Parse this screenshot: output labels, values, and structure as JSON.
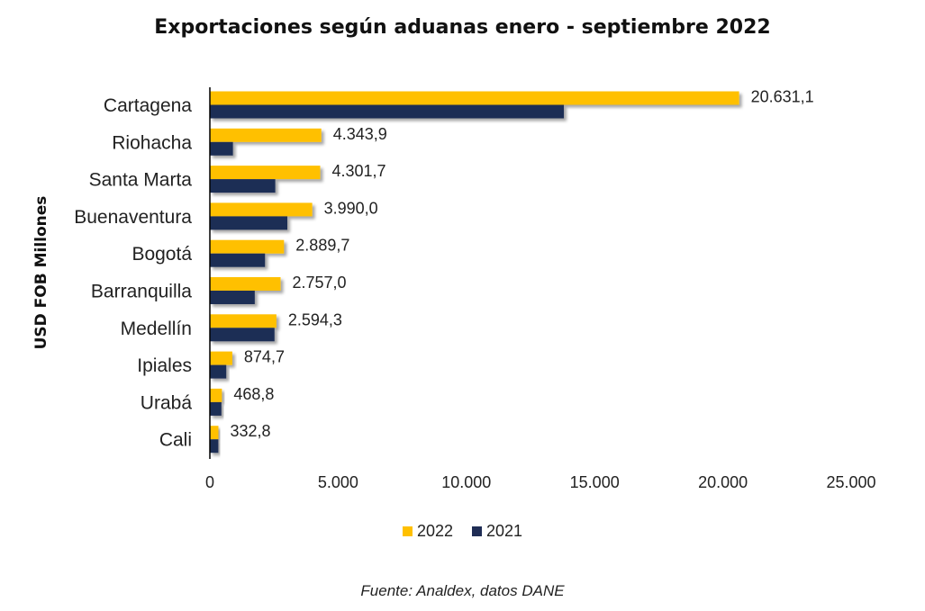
{
  "chart_data": {
    "type": "bar",
    "orientation": "horizontal",
    "title": "Exportaciones según aduanas enero - septiembre 2022",
    "xlabel": "",
    "ylabel": "USD FOB Millones",
    "xlim": [
      0,
      25000
    ],
    "xticks": [
      0,
      5000,
      10000,
      15000,
      20000,
      25000
    ],
    "xtick_labels": [
      "0",
      "5.000",
      "10.000",
      "15.000",
      "20.000",
      "25.000"
    ],
    "categories": [
      "Cartagena",
      "Riohacha",
      "Santa Marta",
      "Buenaventura",
      "Bogotá",
      "Barranquilla",
      "Medellín",
      "Ipiales",
      "Urabá",
      "Cali"
    ],
    "series": [
      {
        "name": "2022",
        "color": "#FFC000",
        "values": [
          20631.1,
          4343.9,
          4301.7,
          3990.0,
          2889.7,
          2757.0,
          2594.3,
          874.7,
          468.8,
          332.8
        ],
        "data_labels": [
          "20.631,1",
          "4.343,9",
          "4.301,7",
          "3.990,0",
          "2.889,7",
          "2.757,0",
          "2.594,3",
          "874,7",
          "468,8",
          "332,8"
        ]
      },
      {
        "name": "2021",
        "color": "#1F2D55",
        "values": [
          13800,
          900,
          2550,
          3020,
          2150,
          1750,
          2520,
          640,
          450,
          330
        ]
      }
    ],
    "grid": false,
    "legend_position": "bottom"
  },
  "source": "Fuente: Analdex, datos DANE",
  "colors": {
    "series_2022": "#FFC000",
    "series_2021": "#1F2D55"
  }
}
